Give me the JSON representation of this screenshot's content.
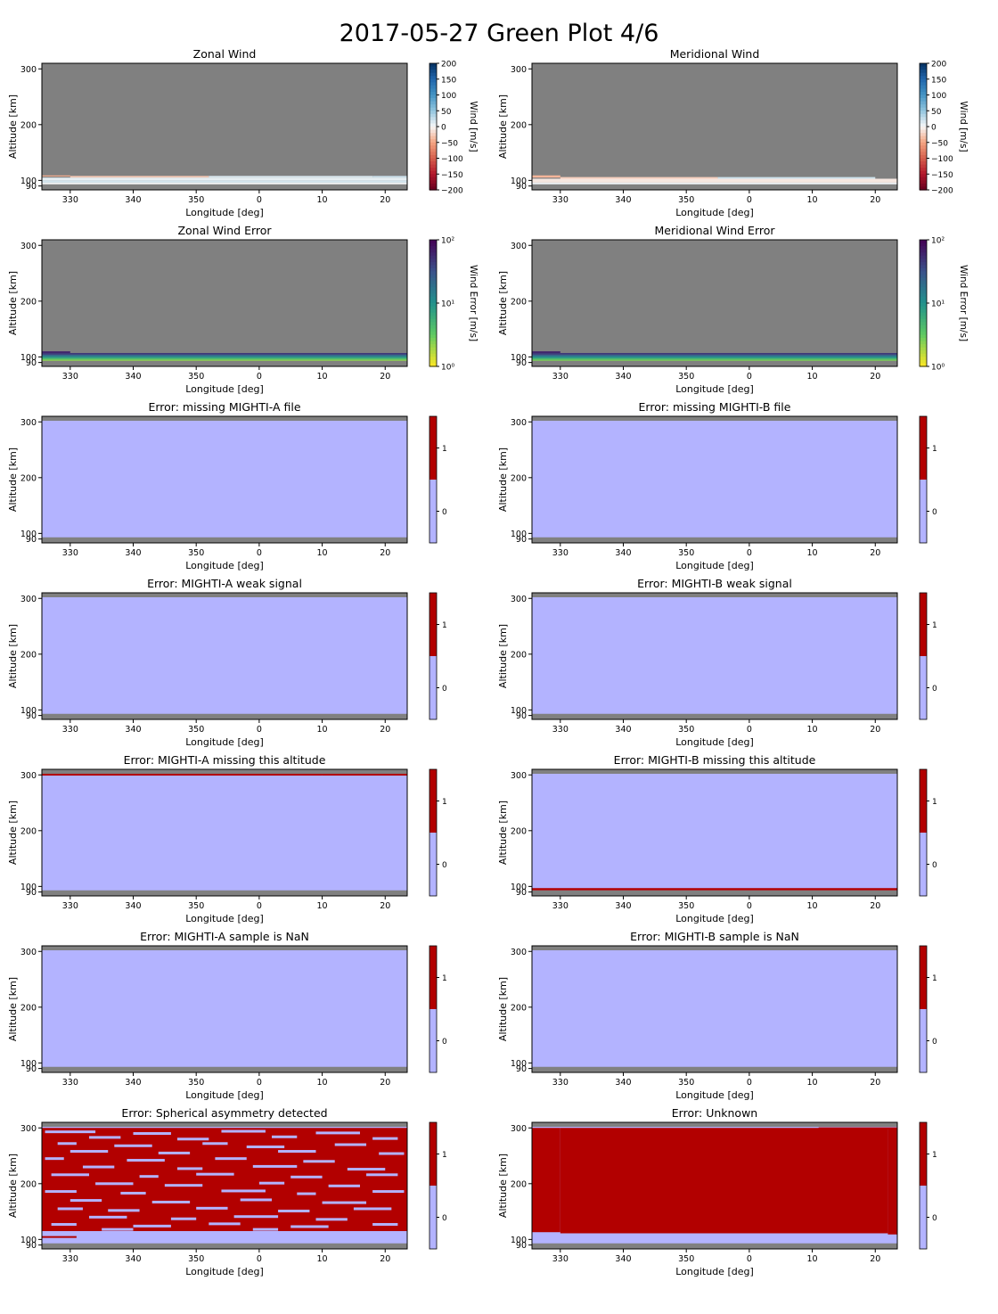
{
  "figure": {
    "title": "2017-05-27 Green Plot 4/6"
  },
  "colors": {
    "nodata": "#808080",
    "flag_off": "#b3b3ff",
    "flag_on": "#b20000",
    "wind_neg": "#67001f",
    "wind_zero": "#f7f7f7",
    "wind_pos": "#053061"
  },
  "axes_common": {
    "xlabel": "Longitude [deg]",
    "ylabel": "Altitude [km]",
    "xticks": [
      "330",
      "340",
      "350",
      "0",
      "10",
      "20"
    ],
    "yticks": [
      "90",
      "100",
      "200",
      "300"
    ]
  },
  "chart_data": [
    {
      "type": "heatmap",
      "title": "Zonal Wind",
      "xlabel": "Longitude [deg]",
      "ylabel": "Altitude [km]",
      "xlim": [
        325.5,
        383.5
      ],
      "ylim": [
        83,
        310
      ],
      "colormap": "RdBu",
      "colorbar_label": "Wind [m/s]",
      "colorbar_ticks": [
        "200",
        "150",
        "100",
        "50",
        "0",
        "−50",
        "−100",
        "−150",
        "−200"
      ],
      "clim": [
        -200,
        200
      ],
      "bands": [
        {
          "x0": 325.5,
          "x1": 330,
          "y0": 107,
          "y1": 109,
          "value": -45
        },
        {
          "x0": 330,
          "x1": 352,
          "y0": 105,
          "y1": 108,
          "value": -28
        },
        {
          "x0": 352,
          "x1": 378,
          "y0": 105,
          "y1": 108,
          "value": 14
        },
        {
          "x0": 378,
          "x1": 383.5,
          "y0": 105,
          "y1": 108,
          "value": 22
        },
        {
          "x0": 325.5,
          "x1": 383.5,
          "y0": 100,
          "y1": 105,
          "value": 8
        },
        {
          "x0": 325.5,
          "x1": 383.5,
          "y0": 96,
          "y1": 100,
          "value": 18
        },
        {
          "x0": 325.5,
          "x1": 383.5,
          "y0": 93,
          "y1": 96,
          "value": 2
        }
      ]
    },
    {
      "type": "heatmap",
      "title": "Meridional Wind",
      "xlabel": "Longitude [deg]",
      "ylabel": "Altitude [km]",
      "xlim": [
        325.5,
        383.5
      ],
      "ylim": [
        83,
        310
      ],
      "colormap": "RdBu",
      "colorbar_label": "Wind [m/s]",
      "colorbar_ticks": [
        "200",
        "150",
        "100",
        "50",
        "0",
        "−50",
        "−100",
        "−150",
        "−200"
      ],
      "clim": [
        -200,
        200
      ],
      "bands": [
        {
          "x0": 325.5,
          "x1": 330,
          "y0": 105,
          "y1": 109,
          "value": -40
        },
        {
          "x0": 330,
          "x1": 355,
          "y0": 103,
          "y1": 106,
          "value": -25
        },
        {
          "x0": 355,
          "x1": 380,
          "y0": 103,
          "y1": 106,
          "value": 22
        },
        {
          "x0": 325.5,
          "x1": 383.5,
          "y0": 96,
          "y1": 103,
          "value": -10
        },
        {
          "x0": 325.5,
          "x1": 383.5,
          "y0": 93,
          "y1": 96,
          "value": 3
        }
      ]
    },
    {
      "type": "heatmap",
      "title": "Zonal Wind Error",
      "xlabel": "Longitude [deg]",
      "ylabel": "Altitude [km]",
      "xlim": [
        325.5,
        383.5
      ],
      "ylim": [
        83,
        310
      ],
      "colormap": "viridis_r",
      "scale": "log",
      "colorbar_label": "Wind Error [m/s]",
      "colorbar_ticks": [
        "10²",
        "10¹",
        "10⁰"
      ],
      "clim": [
        1,
        100
      ],
      "bands": [
        {
          "x0": 325.5,
          "x1": 330,
          "y0": 107,
          "y1": 110,
          "value": 60
        },
        {
          "x0": 325.5,
          "x1": 383.5,
          "y0": 104,
          "y1": 107,
          "value": 45
        },
        {
          "x0": 325.5,
          "x1": 383.5,
          "y0": 101,
          "y1": 104,
          "value": 20
        },
        {
          "x0": 325.5,
          "x1": 383.5,
          "y0": 98,
          "y1": 101,
          "value": 9
        },
        {
          "x0": 325.5,
          "x1": 383.5,
          "y0": 95,
          "y1": 98,
          "value": 4
        },
        {
          "x0": 325.5,
          "x1": 383.5,
          "y0": 93,
          "y1": 95,
          "value": 2.2
        }
      ]
    },
    {
      "type": "heatmap",
      "title": "Meridional Wind Error",
      "xlabel": "Longitude [deg]",
      "ylabel": "Altitude [km]",
      "xlim": [
        325.5,
        383.5
      ],
      "ylim": [
        83,
        310
      ],
      "colormap": "viridis_r",
      "scale": "log",
      "colorbar_label": "Wind Error [m/s]",
      "colorbar_ticks": [
        "10²",
        "10¹",
        "10⁰"
      ],
      "clim": [
        1,
        100
      ],
      "bands": [
        {
          "x0": 325.5,
          "x1": 330,
          "y0": 107,
          "y1": 110,
          "value": 60
        },
        {
          "x0": 325.5,
          "x1": 383.5,
          "y0": 104,
          "y1": 107,
          "value": 45
        },
        {
          "x0": 325.5,
          "x1": 383.5,
          "y0": 101,
          "y1": 104,
          "value": 22
        },
        {
          "x0": 325.5,
          "x1": 383.5,
          "y0": 98,
          "y1": 101,
          "value": 10
        },
        {
          "x0": 325.5,
          "x1": 383.5,
          "y0": 95,
          "y1": 98,
          "value": 4.5
        },
        {
          "x0": 325.5,
          "x1": 383.5,
          "y0": 93,
          "y1": 95,
          "value": 2.5
        }
      ]
    },
    {
      "type": "heatmap",
      "title": "Error: missing MIGHTI-A file",
      "xlabel": "Longitude [deg]",
      "ylabel": "Altitude [km]",
      "xlim": [
        325.5,
        383.5
      ],
      "ylim": [
        83,
        310
      ],
      "colorbar_ticks": [
        "1",
        "0"
      ],
      "clim": [
        -0.5,
        1.5
      ],
      "valid_alt": [
        93,
        302
      ],
      "flag_bands": []
    },
    {
      "type": "heatmap",
      "title": "Error: missing MIGHTI-B file",
      "xlabel": "Longitude [deg]",
      "ylabel": "Altitude [km]",
      "xlim": [
        325.5,
        383.5
      ],
      "ylim": [
        83,
        310
      ],
      "colorbar_ticks": [
        "1",
        "0"
      ],
      "clim": [
        -0.5,
        1.5
      ],
      "valid_alt": [
        93,
        302
      ],
      "flag_bands": []
    },
    {
      "type": "heatmap",
      "title": "Error: MIGHTI-A weak signal",
      "xlabel": "Longitude [deg]",
      "ylabel": "Altitude [km]",
      "xlim": [
        325.5,
        383.5
      ],
      "ylim": [
        83,
        310
      ],
      "colorbar_ticks": [
        "1",
        "0"
      ],
      "clim": [
        -0.5,
        1.5
      ],
      "valid_alt": [
        93,
        302
      ],
      "flag_bands": []
    },
    {
      "type": "heatmap",
      "title": "Error: MIGHTI-B weak signal",
      "xlabel": "Longitude [deg]",
      "ylabel": "Altitude [km]",
      "xlim": [
        325.5,
        383.5
      ],
      "ylim": [
        83,
        310
      ],
      "colorbar_ticks": [
        "1",
        "0"
      ],
      "clim": [
        -0.5,
        1.5
      ],
      "valid_alt": [
        93,
        302
      ],
      "flag_bands": []
    },
    {
      "type": "heatmap",
      "title": "Error: MIGHTI-A missing this altitude",
      "xlabel": "Longitude [deg]",
      "ylabel": "Altitude [km]",
      "xlim": [
        325.5,
        383.5
      ],
      "ylim": [
        83,
        310
      ],
      "colorbar_ticks": [
        "1",
        "0"
      ],
      "clim": [
        -0.5,
        1.5
      ],
      "valid_alt": [
        93,
        302
      ],
      "flag_bands": [
        {
          "x0": 325.5,
          "x1": 370,
          "y0": 299,
          "y1": 302
        },
        {
          "x0": 370,
          "x1": 383.5,
          "y0": 300,
          "y1": 302
        }
      ]
    },
    {
      "type": "heatmap",
      "title": "Error: MIGHTI-B missing this altitude",
      "xlabel": "Longitude [deg]",
      "ylabel": "Altitude [km]",
      "xlim": [
        325.5,
        383.5
      ],
      "ylim": [
        83,
        310
      ],
      "colorbar_ticks": [
        "1",
        "0"
      ],
      "clim": [
        -0.5,
        1.5
      ],
      "valid_alt": [
        93,
        302
      ],
      "flag_bands": [
        {
          "x0": 325.5,
          "x1": 383.5,
          "y0": 93,
          "y1": 97
        }
      ]
    },
    {
      "type": "heatmap",
      "title": "Error: MIGHTI-A sample is NaN",
      "xlabel": "Longitude [deg]",
      "ylabel": "Altitude [km]",
      "xlim": [
        325.5,
        383.5
      ],
      "ylim": [
        83,
        310
      ],
      "colorbar_ticks": [
        "1",
        "0"
      ],
      "clim": [
        -0.5,
        1.5
      ],
      "valid_alt": [
        93,
        302
      ],
      "flag_bands": []
    },
    {
      "type": "heatmap",
      "title": "Error: MIGHTI-B sample is NaN",
      "xlabel": "Longitude [deg]",
      "ylabel": "Altitude [km]",
      "xlim": [
        325.5,
        383.5
      ],
      "ylim": [
        83,
        310
      ],
      "colorbar_ticks": [
        "1",
        "0"
      ],
      "clim": [
        -0.5,
        1.5
      ],
      "valid_alt": [
        93,
        302
      ],
      "flag_bands": []
    },
    {
      "type": "heatmap",
      "title": "Error: Spherical asymmetry detected",
      "xlabel": "Longitude [deg]",
      "ylabel": "Altitude [km]",
      "xlim": [
        325.5,
        383.5
      ],
      "ylim": [
        83,
        310
      ],
      "colorbar_ticks": [
        "1",
        "0"
      ],
      "clim": [
        -0.5,
        1.5
      ],
      "valid_alt": [
        93,
        302
      ],
      "flag_bands": [
        {
          "x0": 325.5,
          "x1": 383.5,
          "y0": 115,
          "y1": 300
        },
        {
          "x0": 325.5,
          "x1": 331,
          "y0": 104,
          "y1": 106
        }
      ],
      "gap_segments": [
        {
          "x0": 326,
          "x1": 334,
          "y": 293
        },
        {
          "x0": 340,
          "x1": 346,
          "y": 290
        },
        {
          "x0": 354,
          "x1": 361,
          "y": 294
        },
        {
          "x0": 369,
          "x1": 376,
          "y": 291
        },
        {
          "x0": 333,
          "x1": 338,
          "y": 283
        },
        {
          "x0": 347,
          "x1": 352,
          "y": 280
        },
        {
          "x0": 362,
          "x1": 366,
          "y": 284
        },
        {
          "x0": 378,
          "x1": 382,
          "y": 281
        },
        {
          "x0": 328,
          "x1": 331,
          "y": 272
        },
        {
          "x0": 337,
          "x1": 343,
          "y": 268
        },
        {
          "x0": 351,
          "x1": 355,
          "y": 272
        },
        {
          "x0": 358,
          "x1": 364,
          "y": 266
        },
        {
          "x0": 372,
          "x1": 377,
          "y": 270
        },
        {
          "x0": 330,
          "x1": 336,
          "y": 258
        },
        {
          "x0": 344,
          "x1": 349,
          "y": 255
        },
        {
          "x0": 363,
          "x1": 369,
          "y": 258
        },
        {
          "x0": 379,
          "x1": 383,
          "y": 254
        },
        {
          "x0": 326,
          "x1": 329,
          "y": 245
        },
        {
          "x0": 339,
          "x1": 345,
          "y": 242
        },
        {
          "x0": 353,
          "x1": 358,
          "y": 245
        },
        {
          "x0": 367,
          "x1": 372,
          "y": 240
        },
        {
          "x0": 332,
          "x1": 337,
          "y": 230
        },
        {
          "x0": 347,
          "x1": 351,
          "y": 227
        },
        {
          "x0": 359,
          "x1": 366,
          "y": 231
        },
        {
          "x0": 374,
          "x1": 380,
          "y": 226
        },
        {
          "x0": 327,
          "x1": 333,
          "y": 216
        },
        {
          "x0": 341,
          "x1": 344,
          "y": 213
        },
        {
          "x0": 350,
          "x1": 356,
          "y": 217
        },
        {
          "x0": 365,
          "x1": 370,
          "y": 212
        },
        {
          "x0": 377,
          "x1": 382,
          "y": 216
        },
        {
          "x0": 334,
          "x1": 340,
          "y": 200
        },
        {
          "x0": 345,
          "x1": 351,
          "y": 197
        },
        {
          "x0": 360,
          "x1": 364,
          "y": 201
        },
        {
          "x0": 371,
          "x1": 376,
          "y": 196
        },
        {
          "x0": 326,
          "x1": 331,
          "y": 186
        },
        {
          "x0": 338,
          "x1": 342,
          "y": 183
        },
        {
          "x0": 354,
          "x1": 361,
          "y": 187
        },
        {
          "x0": 366,
          "x1": 369,
          "y": 182
        },
        {
          "x0": 378,
          "x1": 383,
          "y": 186
        },
        {
          "x0": 330,
          "x1": 335,
          "y": 170
        },
        {
          "x0": 343,
          "x1": 349,
          "y": 167
        },
        {
          "x0": 357,
          "x1": 362,
          "y": 171
        },
        {
          "x0": 370,
          "x1": 377,
          "y": 166
        },
        {
          "x0": 328,
          "x1": 332,
          "y": 155
        },
        {
          "x0": 336,
          "x1": 341,
          "y": 152
        },
        {
          "x0": 350,
          "x1": 355,
          "y": 156
        },
        {
          "x0": 363,
          "x1": 368,
          "y": 151
        },
        {
          "x0": 375,
          "x1": 381,
          "y": 155
        },
        {
          "x0": 333,
          "x1": 339,
          "y": 140
        },
        {
          "x0": 346,
          "x1": 350,
          "y": 137
        },
        {
          "x0": 356,
          "x1": 363,
          "y": 141
        },
        {
          "x0": 369,
          "x1": 374,
          "y": 136
        },
        {
          "x0": 327,
          "x1": 331,
          "y": 127
        },
        {
          "x0": 340,
          "x1": 346,
          "y": 124
        },
        {
          "x0": 352,
          "x1": 357,
          "y": 128
        },
        {
          "x0": 365,
          "x1": 371,
          "y": 123
        },
        {
          "x0": 378,
          "x1": 382,
          "y": 127
        },
        {
          "x0": 335,
          "x1": 340,
          "y": 118
        },
        {
          "x0": 359,
          "x1": 363,
          "y": 118
        }
      ]
    },
    {
      "type": "heatmap",
      "title": "Error: Unknown",
      "xlabel": "Longitude [deg]",
      "ylabel": "Altitude [km]",
      "xlim": [
        325.5,
        383.5
      ],
      "ylim": [
        83,
        310
      ],
      "colorbar_ticks": [
        "1",
        "0"
      ],
      "clim": [
        -0.5,
        1.5
      ],
      "valid_alt": [
        93,
        302
      ],
      "flag_bands": [
        {
          "x0": 325.5,
          "x1": 330,
          "y0": 113,
          "y1": 300
        },
        {
          "x0": 330,
          "x1": 382,
          "y0": 111,
          "y1": 300
        },
        {
          "x0": 382,
          "x1": 383.5,
          "y0": 109,
          "y1": 300
        },
        {
          "x0": 371,
          "x1": 383.5,
          "y0": 300,
          "y1": 301
        }
      ]
    }
  ]
}
